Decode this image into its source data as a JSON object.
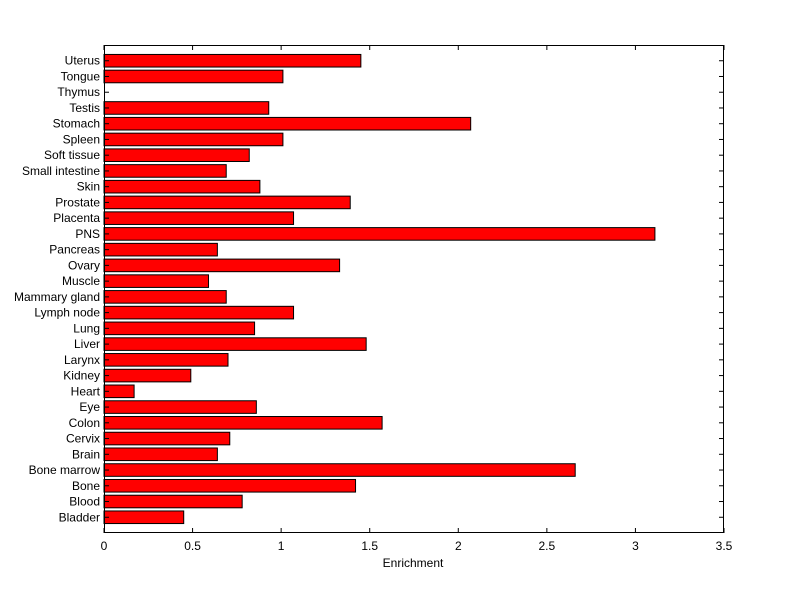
{
  "chart_data": {
    "type": "bar",
    "orientation": "horizontal",
    "title": "",
    "xlabel": "Enrichment",
    "ylabel": "",
    "xlim": [
      0,
      3.5
    ],
    "xticks": [
      "0",
      "0.5",
      "1",
      "1.5",
      "2",
      "2.5",
      "3",
      "3.5"
    ],
    "grid": false,
    "legend": "none",
    "bar_color": "#ff0000",
    "categories": [
      "Bladder",
      "Blood",
      "Bone",
      "Bone marrow",
      "Brain",
      "Cervix",
      "Colon",
      "Eye",
      "Heart",
      "Kidney",
      "Larynx",
      "Liver",
      "Lung",
      "Lymph node",
      "Mammary gland",
      "Muscle",
      "Ovary",
      "Pancreas",
      "PNS",
      "Placenta",
      "Prostate",
      "Skin",
      "Small intestine",
      "Soft tissue",
      "Spleen",
      "Stomach",
      "Testis",
      "Thymus",
      "Tongue",
      "Uterus"
    ],
    "values": [
      0.45,
      0.78,
      1.42,
      2.66,
      0.64,
      0.71,
      1.57,
      0.86,
      0.17,
      0.49,
      0.7,
      1.48,
      0.85,
      1.07,
      0.69,
      0.59,
      1.33,
      0.64,
      3.11,
      1.07,
      1.39,
      0.88,
      0.69,
      0.82,
      1.01,
      2.07,
      0.93,
      0.0,
      1.01,
      1.45
    ]
  }
}
